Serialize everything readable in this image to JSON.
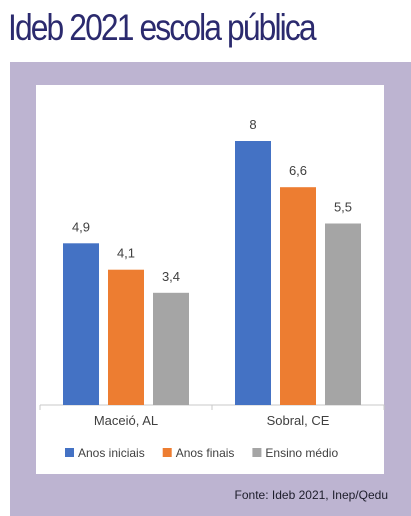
{
  "header": {
    "title": "Ideb 2021 escola pública"
  },
  "footer": {
    "source": "Fonte: Ideb 2021, Inep/Qedu"
  },
  "chart_data": {
    "type": "bar",
    "categories": [
      "Maceió, AL",
      "Sobral, CE"
    ],
    "series": [
      {
        "name": "Anos iniciais",
        "values": [
          4.9,
          8
        ],
        "labels": [
          "4,9",
          "8"
        ],
        "color": "#4472c4"
      },
      {
        "name": "Anos finais",
        "values": [
          4.1,
          6.6
        ],
        "labels": [
          "4,1",
          "6,6"
        ],
        "color": "#ed7d31"
      },
      {
        "name": "Ensino médio",
        "values": [
          3.4,
          5.5
        ],
        "labels": [
          "3,4",
          "5,5"
        ],
        "color": "#a5a5a5"
      }
    ],
    "ylim": [
      0,
      10
    ],
    "grid": false,
    "legend": "bottom",
    "title": "",
    "xlabel": "",
    "ylabel": ""
  }
}
